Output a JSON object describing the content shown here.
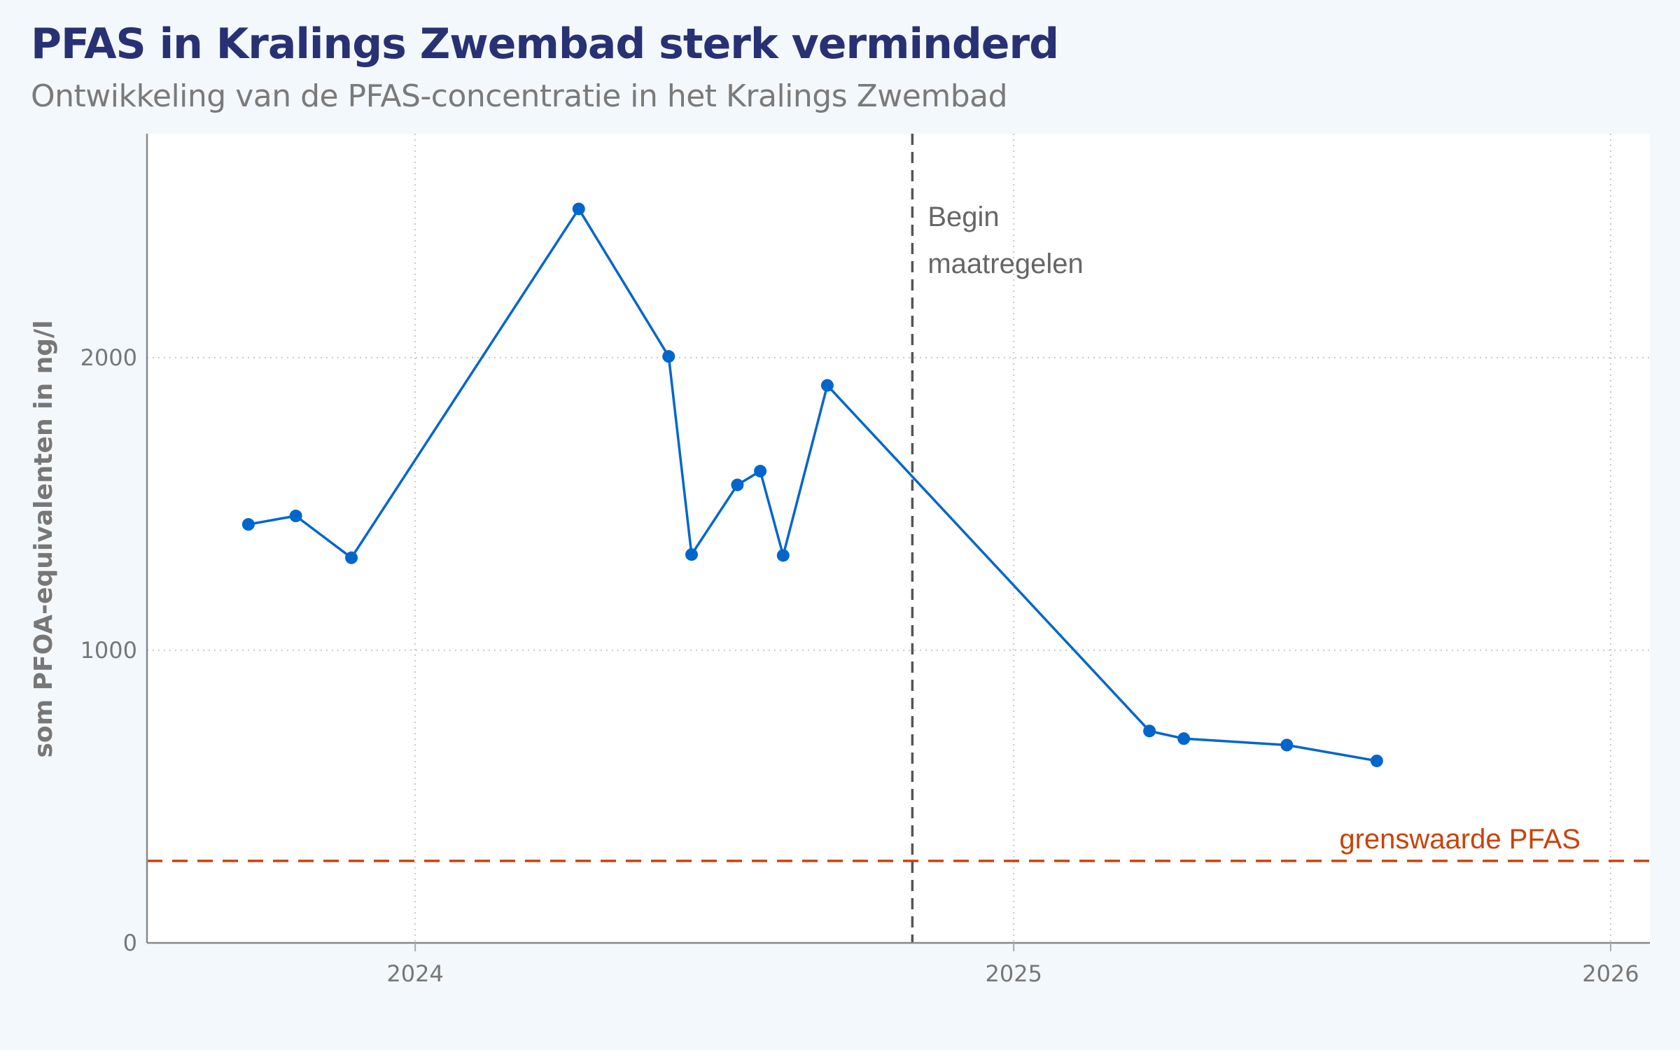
{
  "title": "PFAS in Kralings Zwembad sterk verminderd",
  "subtitle": "Ontwikkeling van de PFAS-concentratie in het Kralings Zwembad",
  "chart_data": {
    "type": "line",
    "title": "PFAS in Kralings Zwembad sterk verminderd",
    "subtitle": "Ontwikkeling van de PFAS-concentratie in het Kralings Zwembad",
    "xlabel": "",
    "ylabel": "som PFOA-equivalenten in ng/l",
    "xlim": [
      "2023-07-21",
      "2026-01-25"
    ],
    "ylim": [
      0,
      2765
    ],
    "xticks": [
      {
        "value": "2024-01-01",
        "label": "2024"
      },
      {
        "value": "2025-01-01",
        "label": "2025"
      },
      {
        "value": "2026-01-01",
        "label": "2026"
      }
    ],
    "yticks": [
      {
        "value": 0,
        "label": "0"
      },
      {
        "value": 1000,
        "label": "1000"
      },
      {
        "value": 2000,
        "label": "2000"
      }
    ],
    "grid": "dotted",
    "series": [
      {
        "color": "#0066cc",
        "points": [
          {
            "x": "2023-09-21",
            "y": 1430
          },
          {
            "x": "2023-10-20",
            "y": 1459
          },
          {
            "x": "2023-11-23",
            "y": 1316
          },
          {
            "x": "2024-04-10",
            "y": 2508
          },
          {
            "x": "2024-06-04",
            "y": 2004
          },
          {
            "x": "2024-06-18",
            "y": 1327
          },
          {
            "x": "2024-07-16",
            "y": 1565
          },
          {
            "x": "2024-07-30",
            "y": 1612
          },
          {
            "x": "2024-08-13",
            "y": 1324
          },
          {
            "x": "2024-09-09",
            "y": 1905
          },
          {
            "x": "2025-03-25",
            "y": 724
          },
          {
            "x": "2025-04-15",
            "y": 698
          },
          {
            "x": "2025-06-17",
            "y": 676
          },
          {
            "x": "2025-08-11",
            "y": 622
          }
        ]
      }
    ],
    "annotations": {
      "vline": {
        "x": "2024-10-31",
        "label_lines": [
          "Begin",
          "maatregelen"
        ],
        "color": "#555555"
      },
      "threshold": {
        "y": 280,
        "label": "grenswaarde PFAS",
        "color": "#c9430a"
      }
    }
  }
}
